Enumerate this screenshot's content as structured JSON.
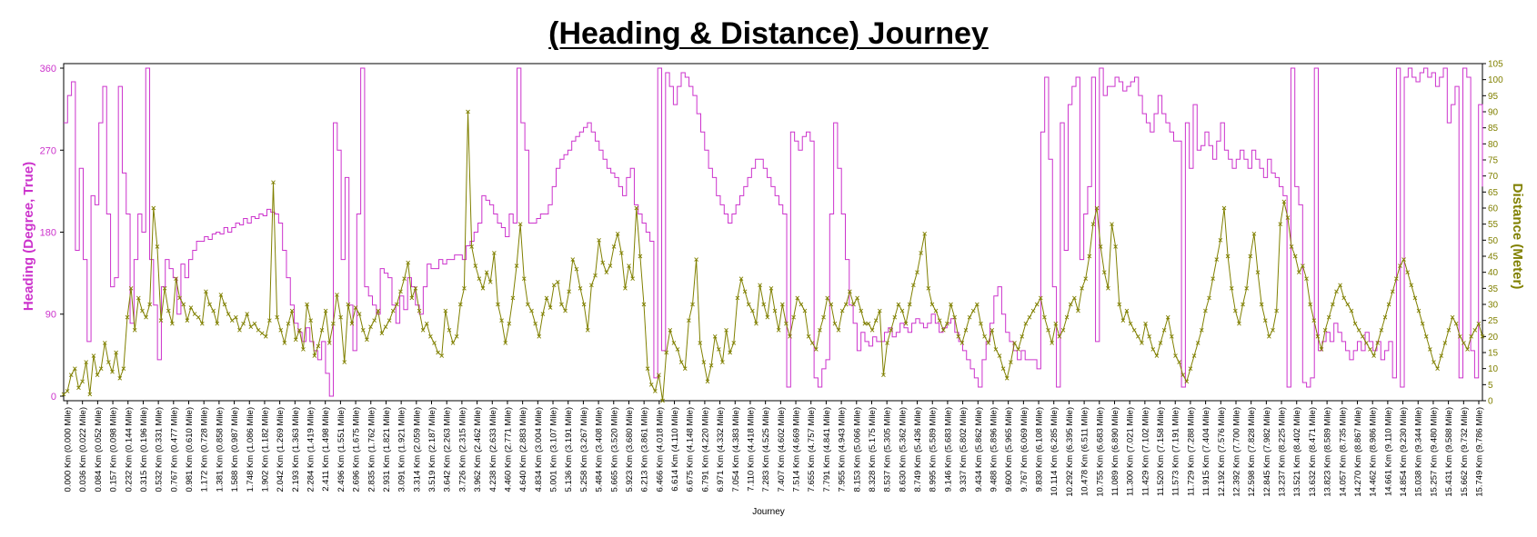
{
  "chart_data": {
    "type": "line",
    "title": "(Heading & Distance) Journey",
    "xlabel": "Journey",
    "ylabel_left": "Heading (Degree, True)",
    "ylabel_right": "Distance (Meter)",
    "y_left": {
      "lim": [
        -5,
        365
      ],
      "ticks": [
        0,
        90,
        180,
        270,
        360
      ]
    },
    "y_right": {
      "lim": [
        0,
        105
      ],
      "ticks": [
        0,
        5,
        10,
        15,
        20,
        25,
        30,
        35,
        40,
        45,
        50,
        55,
        60,
        65,
        70,
        75,
        80,
        85,
        90,
        95,
        100,
        105
      ]
    },
    "grid": false,
    "x_tick_labels": [
      "0.000 Km (0.000 Mile)",
      "0.036 Km (0.022 Mile)",
      "0.084 Km (0.052 Mile)",
      "0.157 Km (0.098 Mile)",
      "0.232 Km (0.144 Mile)",
      "0.315 Km (0.196 Mile)",
      "0.532 Km (0.331 Mile)",
      "0.767 Km (0.477 Mile)",
      "0.981 Km (0.610 Mile)",
      "1.172 Km (0.728 Mile)",
      "1.381 Km (0.858 Mile)",
      "1.588 Km (0.987 Mile)",
      "1.748 Km (1.086 Mile)",
      "1.902 Km (1.182 Mile)",
      "2.042 Km (1.269 Mile)",
      "2.193 Km (1.363 Mile)",
      "2.284 Km (1.419 Mile)",
      "2.411 Km (1.498 Mile)",
      "2.496 Km (1.551 Mile)",
      "2.696 Km (1.675 Mile)",
      "2.835 Km (1.762 Mile)",
      "2.931 Km (1.821 Mile)",
      "3.091 Km (1.921 Mile)",
      "3.314 Km (2.059 Mile)",
      "3.519 Km (2.187 Mile)",
      "3.642 Km (2.263 Mile)",
      "3.726 Km (2.315 Mile)",
      "3.962 Km (2.462 Mile)",
      "4.238 Km (2.633 Mile)",
      "4.460 Km (2.771 Mile)",
      "4.640 Km (2.883 Mile)",
      "4.834 Km (3.004 Mile)",
      "5.001 Km (3.107 Mile)",
      "5.136 Km (3.191 Mile)",
      "5.258 Km (3.267 Mile)",
      "5.484 Km (3.408 Mile)",
      "5.665 Km (3.520 Mile)",
      "5.923 Km (3.680 Mile)",
      "6.213 Km (3.861 Mile)",
      "6.466 Km (4.018 Mile)",
      "6.614 Km (4.110 Mile)",
      "6.675 Km (4.148 Mile)",
      "6.791 Km (4.220 Mile)",
      "6.971 Km (4.332 Mile)",
      "7.054 Km (4.383 Mile)",
      "7.110 Km (4.418 Mile)",
      "7.283 Km (4.525 Mile)",
      "7.407 Km (4.602 Mile)",
      "7.514 Km (4.669 Mile)",
      "7.655 Km (4.757 Mile)",
      "7.791 Km (4.841 Mile)",
      "7.955 Km (4.943 Mile)",
      "8.153 Km (5.066 Mile)",
      "8.328 Km (5.175 Mile)",
      "8.537 Km (5.305 Mile)",
      "8.630 Km (5.362 Mile)",
      "8.749 Km (5.436 Mile)",
      "8.995 Km (5.589 Mile)",
      "9.146 Km (5.683 Mile)",
      "9.337 Km (5.802 Mile)",
      "9.434 Km (5.862 Mile)",
      "9.488 Km (5.896 Mile)",
      "9.600 Km (5.965 Mile)",
      "9.767 Km (6.069 Mile)",
      "9.830 Km (6.108 Mile)",
      "10.114 Km (6.285 Mile)",
      "10.292 Km (6.395 Mile)",
      "10.478 Km (6.511 Mile)",
      "10.755 Km (6.683 Mile)",
      "11.089 Km (6.890 Mile)",
      "11.300 Km (7.021 Mile)",
      "11.429 Km (7.102 Mile)",
      "11.520 Km (7.158 Mile)",
      "11.573 Km (7.191 Mile)",
      "11.729 Km (7.288 Mile)",
      "11.915 Km (7.404 Mile)",
      "12.192 Km (7.576 Mile)",
      "12.392 Km (7.700 Mile)",
      "12.598 Km (7.828 Mile)",
      "12.845 Km (7.982 Mile)",
      "13.237 Km (8.225 Mile)",
      "13.521 Km (8.402 Mile)",
      "13.632 Km (8.471 Mile)",
      "13.823 Km (8.589 Mile)",
      "14.057 Km (8.735 Mile)",
      "14.270 Km (8.867 Mile)",
      "14.462 Km (8.986 Mile)",
      "14.661 Km (9.110 Mile)",
      "14.854 Km (9.230 Mile)",
      "15.038 Km (9.344 Mile)",
      "15.257 Km (9.480 Mile)",
      "15.431 Km (9.588 Mile)",
      "15.662 Km (9.732 Mile)",
      "15.749 Km (9.786 Mile)"
    ],
    "series": [
      {
        "name": "Heading (Degree, True)",
        "axis": "left",
        "color": "#cc33cc",
        "style": "step",
        "values": [
          300,
          330,
          345,
          160,
          250,
          150,
          60,
          220,
          210,
          300,
          340,
          200,
          120,
          130,
          340,
          245,
          200,
          80,
          150,
          200,
          180,
          360,
          150,
          100,
          40,
          120,
          150,
          140,
          130,
          90,
          145,
          130,
          150,
          160,
          170,
          170,
          175,
          172,
          178,
          180,
          178,
          185,
          180,
          185,
          190,
          188,
          195,
          190,
          197,
          195,
          200,
          198,
          205,
          202,
          200,
          190,
          160,
          130,
          100,
          80,
          70,
          60,
          75,
          60,
          50,
          40,
          60,
          25,
          0,
          300,
          270,
          150,
          240,
          100,
          50,
          200,
          360,
          120,
          110,
          100,
          90,
          140,
          135,
          130,
          100,
          80,
          110,
          95,
          130,
          120,
          100,
          90,
          120,
          145,
          140,
          140,
          150,
          145,
          150,
          150,
          155,
          155,
          150,
          165,
          170,
          180,
          190,
          220,
          215,
          210,
          200,
          190,
          185,
          175,
          200,
          190,
          360,
          300,
          270,
          190,
          190,
          195,
          200,
          200,
          210,
          230,
          250,
          260,
          265,
          270,
          280,
          285,
          290,
          295,
          300,
          290,
          280,
          270,
          260,
          250,
          245,
          240,
          230,
          220,
          240,
          250,
          210,
          200,
          190,
          180,
          170,
          20,
          360,
          50,
          355,
          340,
          320,
          340,
          355,
          350,
          340,
          330,
          310,
          290,
          270,
          250,
          240,
          220,
          210,
          200,
          190,
          200,
          210,
          220,
          230,
          240,
          250,
          260,
          260,
          250,
          240,
          230,
          220,
          210,
          200,
          10,
          290,
          280,
          270,
          285,
          290,
          280,
          20,
          10,
          30,
          40,
          200,
          300,
          250,
          200,
          150,
          100,
          80,
          50,
          70,
          60,
          55,
          65,
          60,
          60,
          70,
          75,
          65,
          70,
          80,
          75,
          70,
          80,
          85,
          80,
          75,
          80,
          90,
          80,
          70,
          75,
          80,
          85,
          70,
          60,
          50,
          40,
          30,
          20,
          10,
          40,
          60,
          80,
          110,
          120,
          90,
          70,
          60,
          50,
          40,
          50,
          40,
          40,
          40,
          30,
          290,
          350,
          260,
          120,
          10,
          300,
          160,
          320,
          340,
          350,
          150,
          200,
          230,
          350,
          60,
          360,
          330,
          340,
          340,
          350,
          345,
          335,
          340,
          345,
          350,
          330,
          310,
          300,
          290,
          310,
          330,
          310,
          300,
          290,
          280,
          280,
          10,
          300,
          250,
          320,
          270,
          275,
          290,
          275,
          260,
          280,
          300,
          270,
          260,
          250,
          260,
          270,
          260,
          250,
          270,
          260,
          250,
          240,
          260,
          245,
          240,
          230,
          220,
          10,
          360,
          230,
          210,
          15,
          10,
          20,
          360,
          50,
          60,
          70,
          60,
          80,
          70,
          60,
          50,
          40,
          50,
          60,
          50,
          70,
          60,
          50,
          60,
          40,
          50,
          60,
          20,
          360,
          10,
          350,
          360,
          350,
          345,
          355,
          360,
          350,
          355,
          340,
          350,
          360,
          300,
          320,
          340,
          20,
          360,
          350,
          50,
          20,
          320,
          230
        ]
      },
      {
        "name": "Distance (Meter)",
        "axis": "right",
        "color": "#808000",
        "style": "line",
        "marker": "x",
        "values": [
          2,
          3,
          8,
          10,
          4,
          6,
          12,
          2,
          14,
          8,
          10,
          18,
          12,
          9,
          15,
          7,
          10,
          26,
          35,
          22,
          32,
          28,
          26,
          30,
          60,
          48,
          25,
          35,
          28,
          24,
          38,
          32,
          30,
          25,
          29,
          27,
          26,
          24,
          34,
          30,
          28,
          24,
          33,
          30,
          27,
          25,
          26,
          22,
          24,
          27,
          23,
          24,
          22,
          21,
          20,
          25,
          68,
          26,
          22,
          18,
          24,
          28,
          19,
          22,
          16,
          30,
          25,
          14,
          17,
          22,
          28,
          18,
          24,
          33,
          26,
          12,
          30,
          24,
          29,
          27,
          22,
          19,
          23,
          25,
          28,
          21,
          23,
          25,
          28,
          30,
          34,
          38,
          43,
          32,
          35,
          28,
          22,
          24,
          20,
          18,
          15,
          14,
          28,
          22,
          18,
          20,
          30,
          35,
          90,
          48,
          42,
          38,
          35,
          40,
          37,
          46,
          30,
          25,
          18,
          24,
          32,
          42,
          55,
          38,
          30,
          28,
          24,
          20,
          27,
          32,
          29,
          36,
          37,
          30,
          28,
          34,
          44,
          41,
          35,
          30,
          22,
          36,
          39,
          50,
          43,
          40,
          42,
          48,
          52,
          46,
          35,
          42,
          38,
          60,
          45,
          30,
          10,
          5,
          3,
          8,
          0,
          15,
          22,
          18,
          16,
          12,
          10,
          25,
          30,
          44,
          18,
          12,
          6,
          11,
          20,
          16,
          12,
          22,
          15,
          18,
          32,
          38,
          34,
          30,
          28,
          24,
          36,
          30,
          26,
          35,
          28,
          22,
          30,
          24,
          20,
          26,
          32,
          30,
          28,
          20,
          18,
          16,
          22,
          26,
          32,
          30,
          24,
          22,
          28,
          30,
          34,
          30,
          32,
          28,
          24,
          24,
          22,
          25,
          28,
          8,
          18,
          22,
          26,
          30,
          28,
          24,
          30,
          36,
          40,
          46,
          52,
          35,
          30,
          28,
          25,
          22,
          24,
          30,
          26,
          20,
          18,
          22,
          26,
          28,
          30,
          24,
          20,
          18,
          22,
          16,
          14,
          10,
          7,
          12,
          18,
          16,
          20,
          24,
          26,
          28,
          30,
          32,
          26,
          22,
          18,
          24,
          20,
          22,
          26,
          30,
          32,
          28,
          35,
          38,
          45,
          55,
          60,
          48,
          40,
          35,
          55,
          48,
          30,
          25,
          28,
          24,
          22,
          20,
          18,
          24,
          20,
          16,
          14,
          18,
          22,
          26,
          20,
          14,
          12,
          8,
          6,
          10,
          14,
          18,
          22,
          28,
          32,
          38,
          44,
          50,
          60,
          45,
          35,
          28,
          24,
          30,
          35,
          45,
          52,
          40,
          30,
          25,
          20,
          22,
          28,
          55,
          62,
          57,
          48,
          45,
          40,
          42,
          38,
          30,
          25,
          20,
          16,
          22,
          26,
          30,
          34,
          36,
          32,
          30,
          28,
          24,
          22,
          20,
          18,
          16,
          14,
          18,
          22,
          26,
          30,
          34,
          38,
          42,
          44,
          40,
          36,
          32,
          28,
          24,
          20,
          16,
          12,
          10,
          14,
          18,
          22,
          26,
          24,
          20,
          18,
          16,
          20,
          22,
          24,
          20
        ]
      }
    ]
  }
}
